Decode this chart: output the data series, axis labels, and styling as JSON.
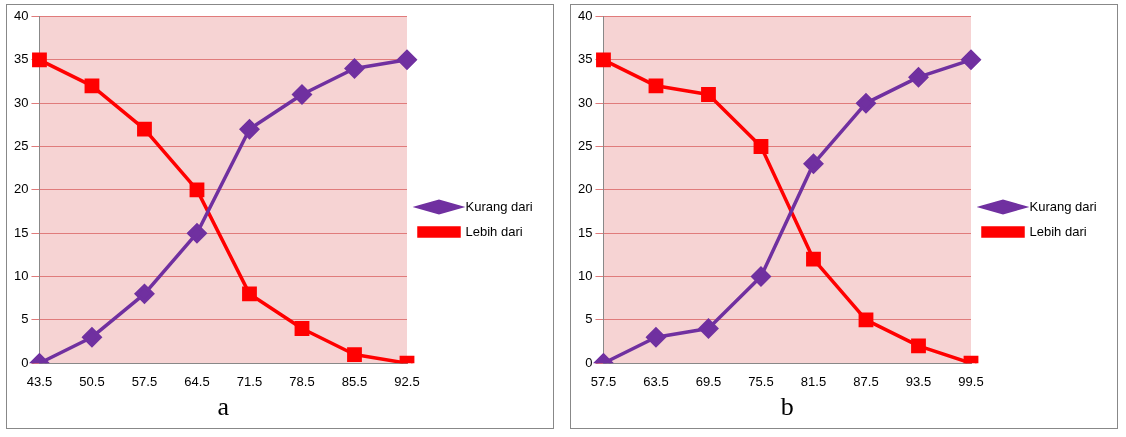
{
  "chart_data": [
    {
      "type": "line",
      "xlabel": "a",
      "categories": [
        "43.5",
        "50.5",
        "57.5",
        "64.5",
        "71.5",
        "78.5",
        "85.5",
        "92.5"
      ],
      "series": [
        {
          "name": "Kurang dari",
          "color": "#7030a0",
          "marker": "diamond",
          "values": [
            0,
            3,
            8,
            15,
            27,
            31,
            34,
            35
          ]
        },
        {
          "name": "Lebih dari",
          "color": "#ff0000",
          "marker": "square",
          "values": [
            35,
            32,
            27,
            20,
            8,
            4,
            1,
            0
          ]
        }
      ],
      "ylim": [
        0,
        40
      ],
      "yticks": [
        0,
        5,
        10,
        15,
        20,
        25,
        30,
        35,
        40
      ],
      "grid": "y",
      "legend": "right"
    },
    {
      "type": "line",
      "xlabel": "b",
      "categories": [
        "57.5",
        "63.5",
        "69.5",
        "75.5",
        "81.5",
        "87.5",
        "93.5",
        "99.5"
      ],
      "series": [
        {
          "name": "Kurang dari",
          "color": "#7030a0",
          "marker": "diamond",
          "values": [
            0,
            3,
            4,
            10,
            23,
            30,
            33,
            35
          ]
        },
        {
          "name": "Lebih dari",
          "color": "#ff0000",
          "marker": "square",
          "values": [
            35,
            32,
            31,
            25,
            12,
            5,
            2,
            0
          ]
        }
      ],
      "ylim": [
        0,
        40
      ],
      "yticks": [
        0,
        5,
        10,
        15,
        20,
        25,
        30,
        35,
        40
      ],
      "grid": "y",
      "legend": "right"
    }
  ]
}
